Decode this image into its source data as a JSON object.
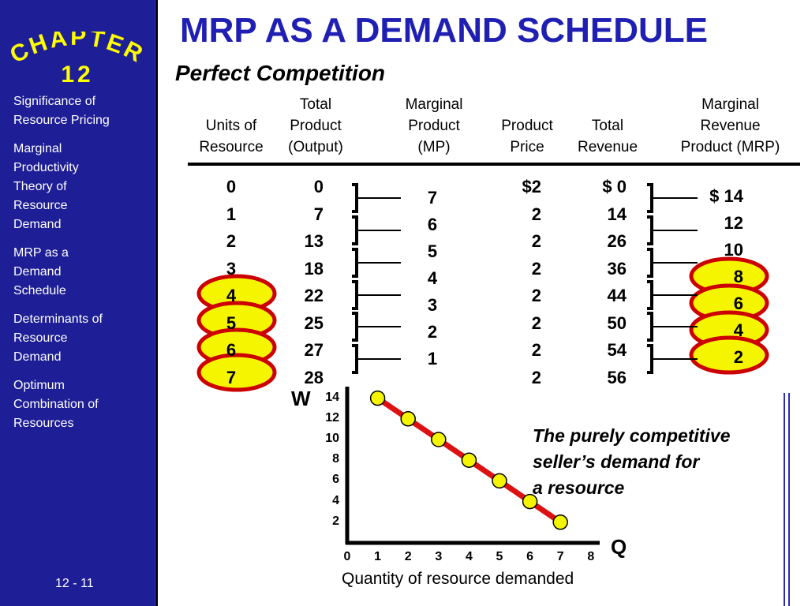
{
  "sidebar": {
    "chapter_label": "CHAPTER",
    "chapter_number": "12",
    "items": [
      {
        "lines": [
          "Significance of",
          "Resource Pricing"
        ]
      },
      {
        "lines": [
          "Marginal",
          "Productivity",
          "Theory of",
          "Resource",
          "Demand"
        ]
      },
      {
        "lines": [
          "MRP as a",
          "Demand",
          "Schedule"
        ]
      },
      {
        "lines": [
          "Determinants of",
          "Resource",
          "Demand"
        ]
      },
      {
        "lines": [
          "Optimum",
          "Combination of",
          "Resources"
        ]
      }
    ],
    "slide_number": "12 - 11"
  },
  "title": "MRP AS A DEMAND SCHEDULE",
  "subtitle": "Perfect Competition",
  "table": {
    "headers": {
      "units": [
        "Units of",
        "Resource"
      ],
      "total_product": [
        "Total",
        "Product",
        "(Output)"
      ],
      "marginal_product": [
        "Marginal",
        "Product",
        "(MP)"
      ],
      "price": [
        "Product",
        "Price"
      ],
      "total_revenue": [
        "Total",
        "Revenue"
      ],
      "mrp": [
        "Marginal",
        "Revenue",
        "Product (MRP)"
      ]
    },
    "units": [
      "0",
      "1",
      "2",
      "3",
      "4",
      "5",
      "6",
      "7"
    ],
    "total_product": [
      "0",
      "7",
      "13",
      "18",
      "22",
      "25",
      "27",
      "28"
    ],
    "marginal_product": [
      "7",
      "6",
      "5",
      "4",
      "3",
      "2",
      "1"
    ],
    "price": [
      "$2",
      "2",
      "2",
      "2",
      "2",
      "2",
      "2",
      "2"
    ],
    "total_revenue": [
      "$  0",
      "14",
      "26",
      "36",
      "44",
      "50",
      "54",
      "56"
    ],
    "mrp": [
      "$ 14",
      "12",
      "10",
      "8",
      "6",
      "4",
      "2"
    ]
  },
  "highlight_color": "#f5f500",
  "highlight_border": "#cc0000",
  "note": [
    "The purely competitive",
    "seller’s demand for",
    "a resource"
  ],
  "chart_data": {
    "type": "line",
    "ylabel": "W",
    "xlabel": "Q",
    "x_axis_title": "Quantity of resource demanded",
    "x_ticks": [
      "0",
      "1",
      "2",
      "3",
      "4",
      "5",
      "6",
      "7",
      "8"
    ],
    "y_ticks": [
      "14",
      "12",
      "10",
      "8",
      "6",
      "4",
      "2"
    ],
    "xlim": [
      0,
      8
    ],
    "ylim": [
      0,
      14
    ],
    "x": [
      1,
      2,
      3,
      4,
      5,
      6,
      7
    ],
    "y": [
      14,
      12,
      10,
      8,
      6,
      4,
      2
    ],
    "line_color": "#dd1111",
    "marker_color": "#f5f500"
  }
}
